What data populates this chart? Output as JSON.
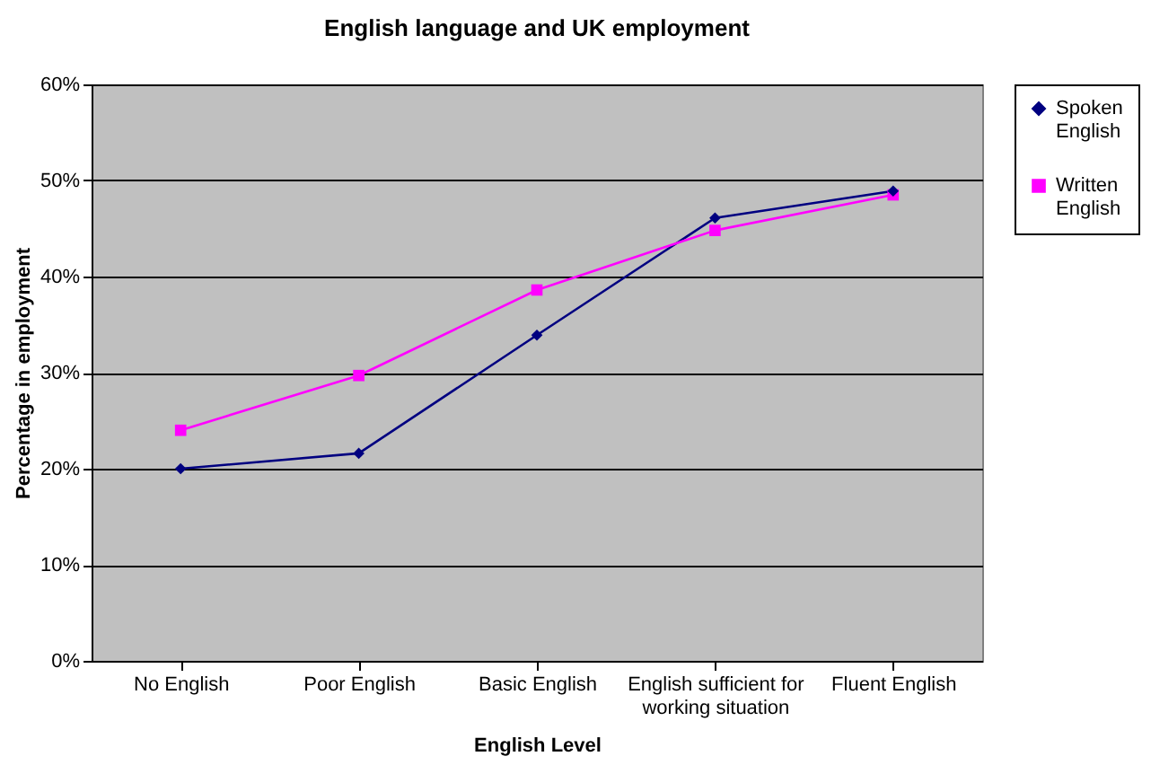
{
  "chart_data": {
    "type": "line",
    "title": "English language and UK employment",
    "xlabel": "English Level",
    "ylabel": "Percentage in employment",
    "categories": [
      "No English",
      "Poor English",
      "Basic English",
      "English sufficient for working situation",
      "Fluent English"
    ],
    "series": [
      {
        "name": "Spoken English",
        "color": "#000080",
        "marker": "diamond",
        "values": [
          20.0,
          21.6,
          33.9,
          46.1,
          48.9
        ]
      },
      {
        "name": "Written English",
        "color": "#ff00ff",
        "marker": "square",
        "values": [
          24.0,
          29.7,
          38.6,
          44.8,
          48.5
        ]
      }
    ],
    "ylim": [
      0,
      60
    ],
    "yticks": [
      {
        "value": 0,
        "label": "0%"
      },
      {
        "value": 10,
        "label": "10%"
      },
      {
        "value": 20,
        "label": "20%"
      },
      {
        "value": 30,
        "label": "30%"
      },
      {
        "value": 40,
        "label": "40%"
      },
      {
        "value": 50,
        "label": "50%"
      },
      {
        "value": 60,
        "label": "60%"
      }
    ],
    "grid": "y",
    "legend": "right",
    "line_style": "solid"
  }
}
